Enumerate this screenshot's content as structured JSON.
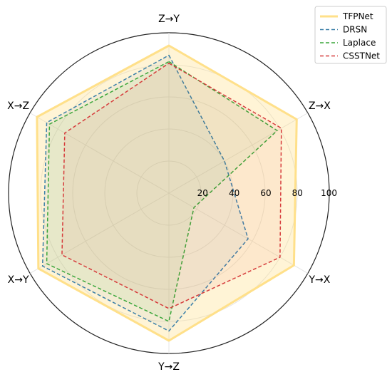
{
  "chart_data": {
    "type": "radar",
    "axes": [
      "Z→Y",
      "Z→X",
      "Y→X",
      "Y→Z",
      "X→Y",
      "X→Z"
    ],
    "rlim": [
      0,
      100
    ],
    "rticks": [
      "20",
      "40",
      "60",
      "80",
      "100"
    ],
    "grid": true,
    "legend": "top-right",
    "series": [
      {
        "name": "TFPNet",
        "color": "#ffe08a",
        "style": "solid",
        "fill": true,
        "values": [
          92,
          92,
          90,
          92,
          94,
          95
        ]
      },
      {
        "name": "DRSN",
        "color": "#3a7fa8",
        "style": "dashed",
        "fill": false,
        "values": [
          86,
          40,
          57,
          86,
          91,
          88
        ]
      },
      {
        "name": "Laplace",
        "color": "#3aa63a",
        "style": "dashed",
        "fill": false,
        "values": [
          82,
          78,
          18,
          80,
          88,
          86
        ]
      },
      {
        "name": "CSSTNet",
        "color": "#d63b3b",
        "style": "dashed",
        "fill": false,
        "values": [
          81,
          81,
          80,
          72,
          77,
          75
        ]
      }
    ]
  }
}
